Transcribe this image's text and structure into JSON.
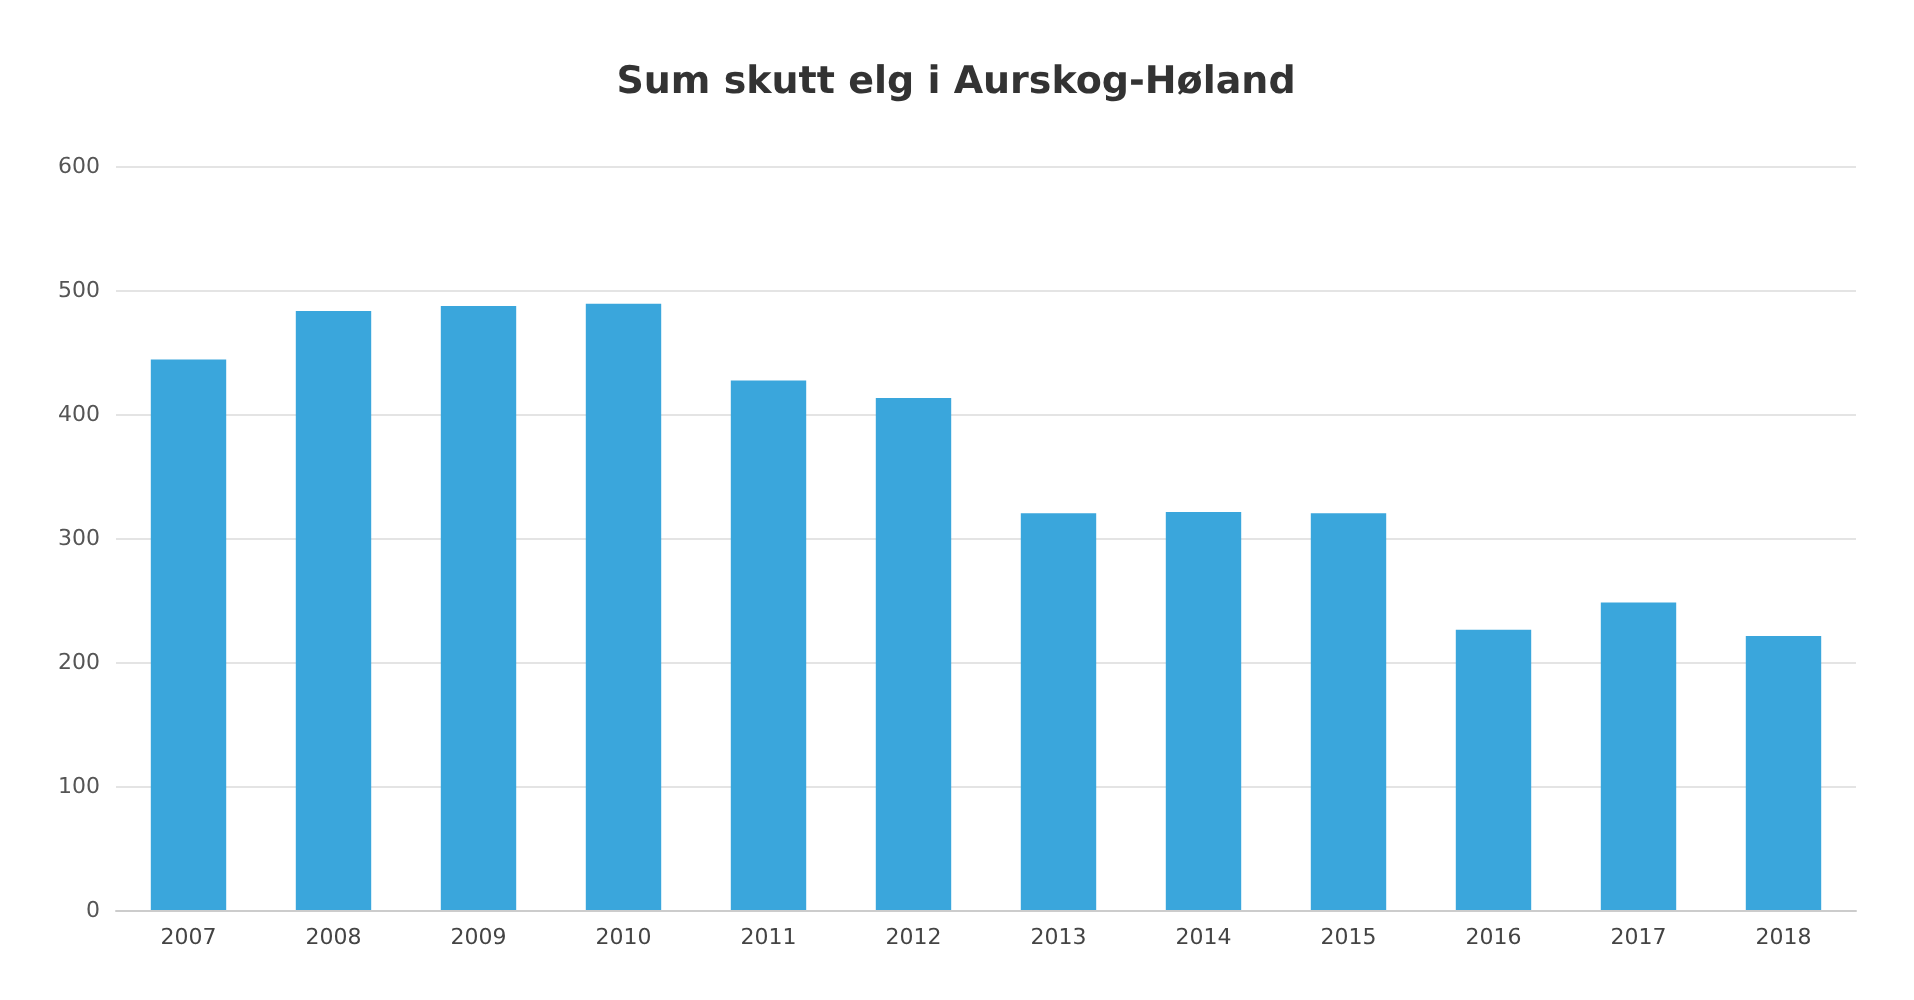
{
  "chart_data": {
    "type": "bar",
    "title": "Sum skutt elg i Aurskog-Høland",
    "categories": [
      "2007",
      "2008",
      "2009",
      "2010",
      "2011",
      "2012",
      "2013",
      "2014",
      "2015",
      "2016",
      "2017",
      "2018"
    ],
    "values": [
      444,
      483,
      487,
      489,
      427,
      413,
      320,
      321,
      320,
      226,
      248,
      221
    ],
    "color": "#3aa6dc",
    "ylim": [
      0,
      600
    ],
    "yticks": [
      0,
      100,
      200,
      300,
      400,
      500,
      600
    ],
    "grid": "y"
  }
}
